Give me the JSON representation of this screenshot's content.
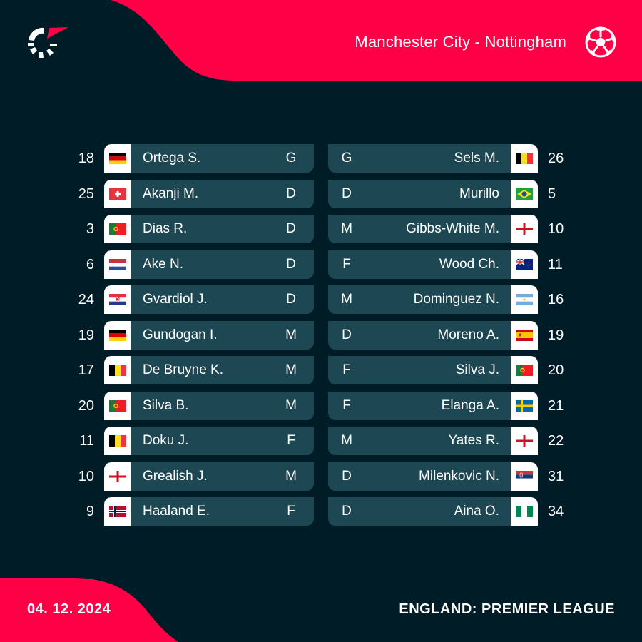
{
  "header": {
    "match_title": "Manchester City - Nottingham",
    "logo_icon": "flashscore-logo-icon",
    "sport_icon": "soccer-ball-icon"
  },
  "colors": {
    "background": "#001c27",
    "accent": "#ff0046",
    "row_bg": "#1d4753",
    "flag_bg": "#ffffff"
  },
  "home": {
    "team": "Manchester City",
    "players": [
      {
        "number": "18",
        "name": "Ortega S.",
        "pos": "G",
        "flag": "germany"
      },
      {
        "number": "25",
        "name": "Akanji M.",
        "pos": "D",
        "flag": "switzerland"
      },
      {
        "number": "3",
        "name": "Dias R.",
        "pos": "D",
        "flag": "portugal"
      },
      {
        "number": "6",
        "name": "Ake N.",
        "pos": "D",
        "flag": "netherlands"
      },
      {
        "number": "24",
        "name": "Gvardiol J.",
        "pos": "D",
        "flag": "croatia"
      },
      {
        "number": "19",
        "name": "Gundogan I.",
        "pos": "M",
        "flag": "germany"
      },
      {
        "number": "17",
        "name": "De Bruyne K.",
        "pos": "M",
        "flag": "belgium"
      },
      {
        "number": "20",
        "name": "Silva B.",
        "pos": "M",
        "flag": "portugal"
      },
      {
        "number": "11",
        "name": "Doku J.",
        "pos": "F",
        "flag": "belgium"
      },
      {
        "number": "10",
        "name": "Grealish J.",
        "pos": "M",
        "flag": "england"
      },
      {
        "number": "9",
        "name": "Haaland E.",
        "pos": "F",
        "flag": "norway"
      }
    ]
  },
  "away": {
    "team": "Nottingham",
    "players": [
      {
        "number": "26",
        "name": "Sels M.",
        "pos": "G",
        "flag": "belgium"
      },
      {
        "number": "5",
        "name": "Murillo",
        "pos": "D",
        "flag": "brazil"
      },
      {
        "number": "10",
        "name": "Gibbs-White M.",
        "pos": "M",
        "flag": "england"
      },
      {
        "number": "11",
        "name": "Wood Ch.",
        "pos": "F",
        "flag": "new-zealand"
      },
      {
        "number": "16",
        "name": "Dominguez N.",
        "pos": "M",
        "flag": "argentina"
      },
      {
        "number": "19",
        "name": "Moreno A.",
        "pos": "D",
        "flag": "spain"
      },
      {
        "number": "20",
        "name": "Silva J.",
        "pos": "F",
        "flag": "portugal"
      },
      {
        "number": "21",
        "name": "Elanga A.",
        "pos": "F",
        "flag": "sweden"
      },
      {
        "number": "22",
        "name": "Yates R.",
        "pos": "M",
        "flag": "england"
      },
      {
        "number": "31",
        "name": "Milenkovic N.",
        "pos": "D",
        "flag": "serbia"
      },
      {
        "number": "34",
        "name": "Aina O.",
        "pos": "D",
        "flag": "nigeria"
      }
    ]
  },
  "footer": {
    "date": "04. 12. 2024",
    "league": "ENGLAND: PREMIER LEAGUE"
  }
}
